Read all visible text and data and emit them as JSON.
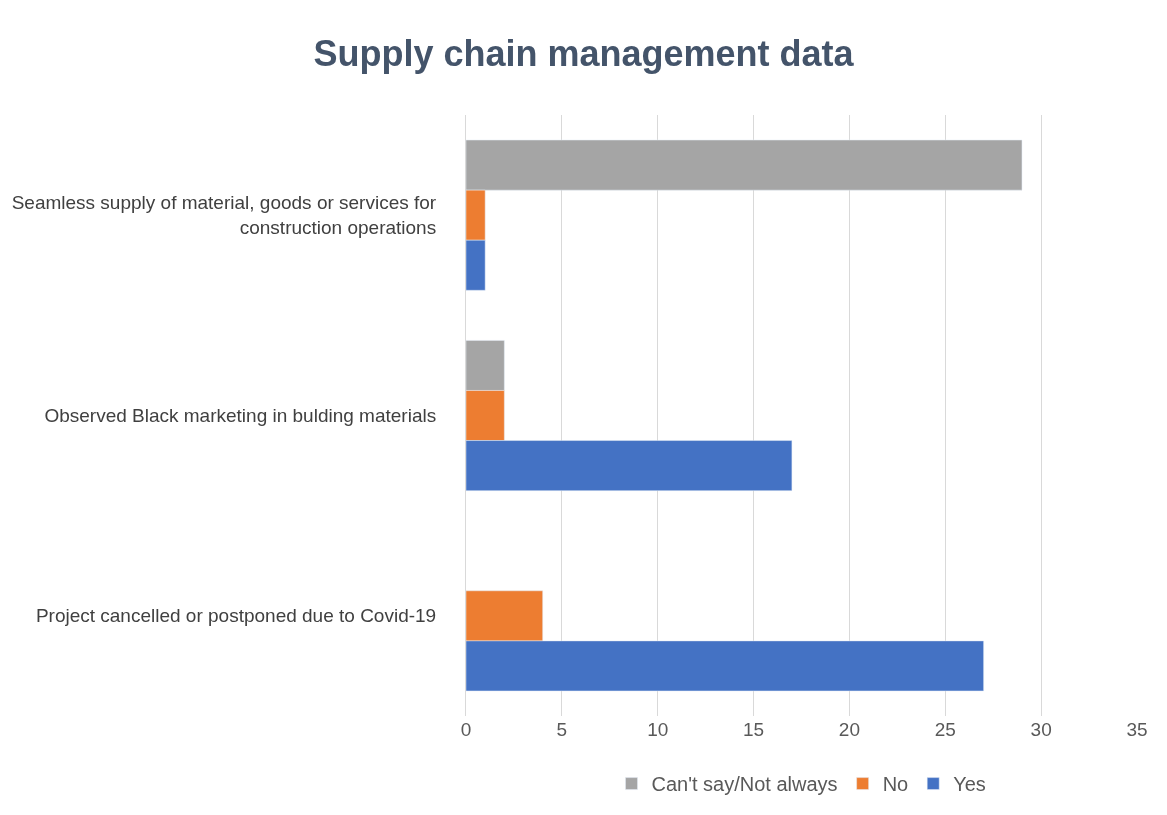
{
  "chart_data": {
    "type": "bar",
    "orientation": "horizontal",
    "title": "Supply chain management data",
    "categories": [
      "Seamless supply of material, goods or services for construction operations",
      "Observed Black marketing in bulding materials",
      "Project cancelled or postponed due to Covid-19"
    ],
    "series": [
      {
        "name": "Can't say/Not always",
        "color": "#a5a5a5",
        "values": [
          29,
          2,
          null
        ]
      },
      {
        "name": "No",
        "color": "#ed7d31",
        "values": [
          1,
          2,
          4
        ]
      },
      {
        "name": "Yes",
        "color": "#4472c4",
        "values": [
          1,
          17,
          27
        ]
      }
    ],
    "xlim": [
      0,
      35
    ],
    "xticks": [
      0,
      5,
      10,
      15,
      20,
      25,
      30,
      35
    ],
    "grid": "x",
    "legend": "bottom"
  }
}
